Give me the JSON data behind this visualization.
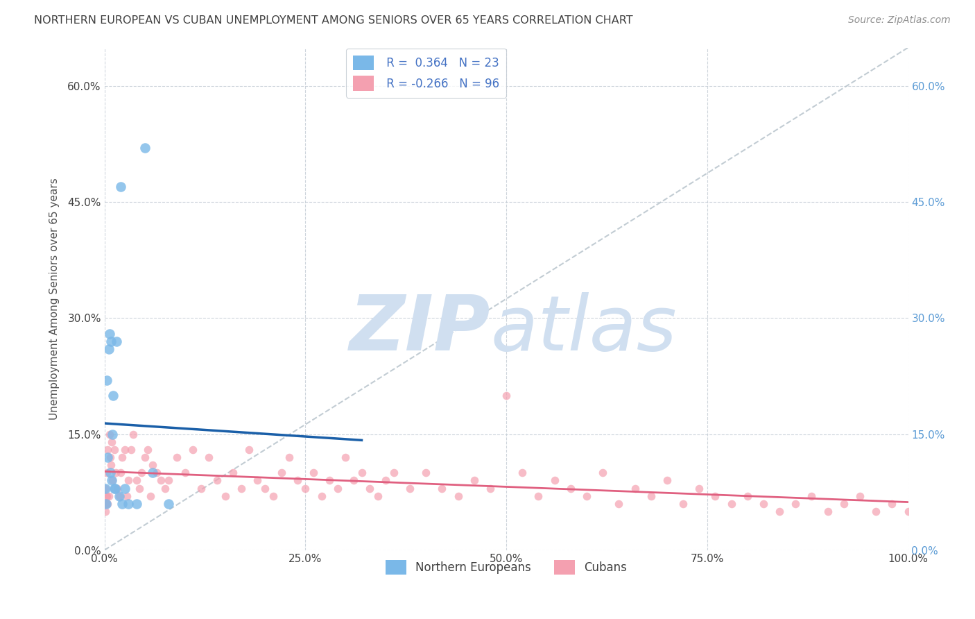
{
  "title": "NORTHERN EUROPEAN VS CUBAN UNEMPLOYMENT AMONG SENIORS OVER 65 YEARS CORRELATION CHART",
  "source": "Source: ZipAtlas.com",
  "ylabel": "Unemployment Among Seniors over 65 years",
  "legend_ne": "Northern Europeans",
  "legend_cu": "Cubans",
  "R_ne": 0.364,
  "N_ne": 23,
  "R_cu": -0.266,
  "N_cu": 96,
  "ne_color": "#7ab8e8",
  "cu_color": "#f4a0b0",
  "ne_line_color": "#1a5fa8",
  "cu_line_color": "#e06080",
  "watermark_color": "#d0dff0",
  "ne_points_x": [
    0.001,
    0.002,
    0.003,
    0.004,
    0.005,
    0.006,
    0.007,
    0.008,
    0.009,
    0.01,
    0.011,
    0.012,
    0.013,
    0.015,
    0.018,
    0.02,
    0.022,
    0.025,
    0.03,
    0.04,
    0.05,
    0.06,
    0.08
  ],
  "ne_points_y": [
    0.08,
    0.06,
    0.22,
    0.12,
    0.26,
    0.28,
    0.1,
    0.27,
    0.09,
    0.15,
    0.2,
    0.08,
    0.08,
    0.27,
    0.07,
    0.47,
    0.06,
    0.08,
    0.06,
    0.06,
    0.52,
    0.1,
    0.06
  ],
  "cu_points_x": [
    0.001,
    0.002,
    0.003,
    0.004,
    0.005,
    0.006,
    0.007,
    0.008,
    0.009,
    0.01,
    0.012,
    0.014,
    0.016,
    0.018,
    0.02,
    0.022,
    0.025,
    0.028,
    0.03,
    0.033,
    0.036,
    0.04,
    0.043,
    0.046,
    0.05,
    0.054,
    0.057,
    0.06,
    0.065,
    0.07,
    0.075,
    0.08,
    0.09,
    0.1,
    0.11,
    0.12,
    0.13,
    0.14,
    0.15,
    0.16,
    0.17,
    0.18,
    0.19,
    0.2,
    0.21,
    0.22,
    0.23,
    0.24,
    0.25,
    0.26,
    0.27,
    0.28,
    0.29,
    0.3,
    0.31,
    0.32,
    0.33,
    0.34,
    0.35,
    0.36,
    0.38,
    0.4,
    0.42,
    0.44,
    0.46,
    0.48,
    0.5,
    0.52,
    0.54,
    0.56,
    0.58,
    0.6,
    0.62,
    0.64,
    0.66,
    0.68,
    0.7,
    0.72,
    0.74,
    0.76,
    0.78,
    0.8,
    0.82,
    0.84,
    0.86,
    0.88,
    0.9,
    0.92,
    0.94,
    0.96,
    0.98,
    1.0,
    0.003,
    0.004,
    0.002,
    0.001
  ],
  "cu_points_y": [
    0.08,
    0.06,
    0.1,
    0.13,
    0.07,
    0.15,
    0.12,
    0.11,
    0.14,
    0.09,
    0.13,
    0.1,
    0.08,
    0.07,
    0.1,
    0.12,
    0.13,
    0.07,
    0.09,
    0.13,
    0.15,
    0.09,
    0.08,
    0.1,
    0.12,
    0.13,
    0.07,
    0.11,
    0.1,
    0.09,
    0.08,
    0.09,
    0.12,
    0.1,
    0.13,
    0.08,
    0.12,
    0.09,
    0.07,
    0.1,
    0.08,
    0.13,
    0.09,
    0.08,
    0.07,
    0.1,
    0.12,
    0.09,
    0.08,
    0.1,
    0.07,
    0.09,
    0.08,
    0.12,
    0.09,
    0.1,
    0.08,
    0.07,
    0.09,
    0.1,
    0.08,
    0.1,
    0.08,
    0.07,
    0.09,
    0.08,
    0.2,
    0.1,
    0.07,
    0.09,
    0.08,
    0.07,
    0.1,
    0.06,
    0.08,
    0.07,
    0.09,
    0.06,
    0.08,
    0.07,
    0.06,
    0.07,
    0.06,
    0.05,
    0.06,
    0.07,
    0.05,
    0.06,
    0.07,
    0.05,
    0.06,
    0.05,
    0.07,
    0.06,
    0.07,
    0.05
  ],
  "xlim": [
    0.0,
    1.0
  ],
  "ylim": [
    0.0,
    0.65
  ],
  "yticks": [
    0.0,
    0.15,
    0.3,
    0.45,
    0.6
  ],
  "ytick_labels": [
    "0.0%",
    "15.0%",
    "30.0%",
    "45.0%",
    "60.0%"
  ],
  "xticks": [
    0.0,
    0.25,
    0.5,
    0.75,
    1.0
  ],
  "xtick_labels": [
    "0.0%",
    "25.0%",
    "50.0%",
    "75.0%",
    "100.0%"
  ],
  "background_color": "#ffffff",
  "grid_color": "#c8d0d8",
  "title_color": "#404040",
  "source_color": "#909090"
}
